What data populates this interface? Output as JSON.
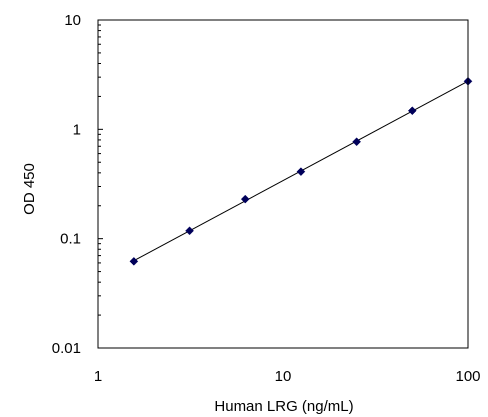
{
  "chart_data": {
    "type": "scatter",
    "title": "",
    "xlabel": "Human LRG (ng/mL)",
    "ylabel": "OD 450",
    "xscale": "log",
    "yscale": "log",
    "xlim": [
      1,
      100
    ],
    "ylim": [
      0.01,
      10
    ],
    "xticks": [
      {
        "value": 1,
        "label": "1"
      },
      {
        "value": 10,
        "label": "10"
      },
      {
        "value": 100,
        "label": "100"
      }
    ],
    "yticks": [
      {
        "value": 10,
        "label": "10"
      },
      {
        "value": 1,
        "label": "1"
      },
      {
        "value": 0.1,
        "label": "0.1"
      },
      {
        "value": 0.01,
        "label": "0.01"
      }
    ],
    "grid": false,
    "legend": "none",
    "series": [
      {
        "x": [
          1.5625,
          3.125,
          6.25,
          12.5,
          25,
          50,
          100
        ],
        "y": [
          0.062,
          0.118,
          0.23,
          0.41,
          0.77,
          1.48,
          2.75
        ],
        "marker": "diamond",
        "color": "#00005a",
        "trendline": "power",
        "line_color": "#000000"
      }
    ]
  }
}
